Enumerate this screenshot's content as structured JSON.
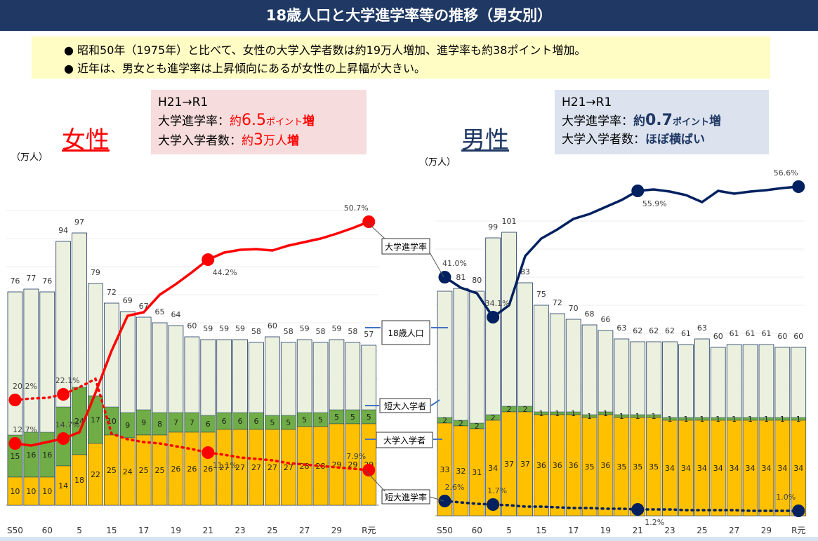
{
  "title": "18歳人口と大学進学率等の推移（男女別）",
  "summary": [
    "● 昭和50年（1975年）と比べて、女性の大学入学者数は約19万人増加、進学率も約38ポイント増加。",
    "● 近年は、男女とも進学率は上昇傾向にあるが女性の上昇幅が大きい。"
  ],
  "female_box": {
    "line1": "H21→R1",
    "l2a": "大学進学率：",
    "l2b": "約",
    "l2c": "6.5",
    "l2d": "ポイント",
    "l2e": "増",
    "l3a": "大学入学者数：",
    "l3b": "約",
    "l3c": "3",
    "l3d": "万人",
    "l3e": "増"
  },
  "male_box": {
    "line1": "H21→R1",
    "l2a": "大学進学率：",
    "l2b": "約",
    "l2c": "0.7",
    "l2d": "ポイント",
    "l2e": "増",
    "l3a": "大学入学者数：",
    "l3b": "ほぼ",
    "l3c": "横ばい"
  },
  "female_label": "女性",
  "male_label": "男性",
  "unit": "（万人）",
  "callouts": {
    "rate": "大学進学率",
    "pop": "18歳人口",
    "junior": "短大入学者",
    "univ": "大学入学者",
    "junior_rate": "短大進学率"
  },
  "colors": {
    "population": "#ebf1de",
    "junior": "#70ad47",
    "university": "#ffc000",
    "female": "#ff0000",
    "male": "#002060"
  },
  "chart_data": [
    {
      "type": "bar",
      "title": "女性",
      "ylabel": "（万人）",
      "x_tick_labels": [
        "S50",
        "60",
        "5",
        "15",
        "17",
        "19",
        "21",
        "23",
        "25",
        "27",
        "29",
        "R元"
      ],
      "series": [
        {
          "name": "18歳人口",
          "values": [
            76,
            77,
            76,
            94,
            97,
            79,
            72,
            69,
            67,
            65,
            64,
            60,
            59,
            59,
            59,
            58,
            60,
            58,
            59,
            58,
            59,
            58,
            57
          ]
        },
        {
          "name": "短大入学者",
          "values": [
            15,
            16,
            16,
            21,
            24,
            17,
            10,
            9,
            9,
            8,
            7,
            7,
            6,
            6,
            6,
            6,
            5,
            5,
            5,
            5,
            5,
            5,
            5
          ]
        },
        {
          "name": "大学入学者",
          "values": [
            10,
            10,
            10,
            14,
            18,
            22,
            25,
            24,
            25,
            25,
            26,
            26,
            26,
            27,
            27,
            27,
            27,
            27,
            28,
            28,
            29,
            29,
            29
          ]
        }
      ],
      "point_labels": {
        "大学進学率": [
          {
            "i": 0,
            "label": "12.7%"
          },
          {
            "i": 3,
            "label": "14.7%"
          },
          {
            "i": 12,
            "label": "44.2%"
          },
          {
            "i": 22,
            "label": "50.7%"
          }
        ],
        "短大進学率": [
          {
            "i": 0,
            "label": "20.2%"
          },
          {
            "i": 3,
            "label": "22.1%"
          },
          {
            "i": 12,
            "label": "11.1%"
          },
          {
            "i": 22,
            "label": "7.9%"
          }
        ]
      }
    },
    {
      "type": "bar",
      "title": "男性",
      "ylabel": "（万人）",
      "x_tick_labels": [
        "S50",
        "60",
        "5",
        "15",
        "17",
        "19",
        "21",
        "23",
        "25",
        "27",
        "29",
        "R元"
      ],
      "series": [
        {
          "name": "18歳人口",
          "values": [
            80,
            81,
            80,
            99,
            101,
            83,
            75,
            72,
            70,
            68,
            66,
            63,
            62,
            62,
            62,
            61,
            63,
            60,
            61,
            61,
            61,
            60,
            60
          ]
        },
        {
          "name": "短大入学者",
          "values": [
            2,
            2,
            2,
            2,
            2,
            2,
            1,
            1,
            1,
            1,
            1,
            1,
            1,
            1,
            1,
            1,
            1,
            1,
            1,
            1,
            1,
            1,
            1
          ]
        },
        {
          "name": "大学入学者",
          "values": [
            33,
            32,
            31,
            34,
            37,
            37,
            36,
            36,
            36,
            35,
            36,
            35,
            35,
            35,
            34,
            34,
            34,
            34,
            34,
            34,
            34,
            34,
            34
          ]
        }
      ],
      "point_labels": {
        "大学進学率": [
          {
            "i": 0,
            "label": "41.0%"
          },
          {
            "i": 3,
            "label": "34.1%"
          },
          {
            "i": 12,
            "label": "55.9%"
          },
          {
            "i": 22,
            "label": "56.6%"
          }
        ],
        "短大進学率": [
          {
            "i": 0,
            "label": "2.6%"
          },
          {
            "i": 3,
            "label": "1.7%"
          },
          {
            "i": 12,
            "label": "1.2%"
          },
          {
            "i": 22,
            "label": "1.0%"
          }
        ]
      }
    }
  ]
}
